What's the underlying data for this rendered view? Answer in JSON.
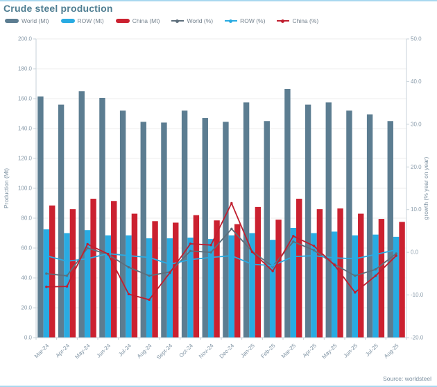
{
  "header": {
    "title": "Crude steel production"
  },
  "source": {
    "label": "Source: worldsteel"
  },
  "colors": {
    "title_text": "#4e7d91",
    "world_bar": "#5c7d91",
    "row_bar": "#29abe2",
    "china_bar": "#cb2130",
    "world_line": "#5d6e7b",
    "row_line": "#29abe2",
    "china_line": "#c01f2f",
    "grid": "#ececec",
    "axis": "#c7d2d9"
  },
  "chart_data": {
    "type": "combo-bar-line",
    "title": "Crude steel production",
    "categories": [
      "Mar-24",
      "Apr-24",
      "May-24",
      "Jun-24",
      "Jul-24",
      "Aug-24",
      "Sept-24",
      "Oct-24",
      "Nov-24",
      "Dec-24",
      "Jan-25",
      "Feb-25",
      "Mar-25",
      "Apr-25",
      "May-25",
      "Jun-25",
      "Jul-25",
      "Aug-25"
    ],
    "series": [
      {
        "name": "World (Mt)",
        "type": "bar",
        "axis": "left",
        "color": "#5c7d91",
        "values": [
          161.5,
          156.0,
          165.0,
          160.5,
          152.0,
          144.5,
          144.0,
          152.0,
          147.0,
          144.5,
          157.5,
          145.0,
          166.5,
          156.0,
          157.5,
          152.0,
          149.5,
          145.0
        ]
      },
      {
        "name": "ROW (Mt)",
        "type": "bar",
        "axis": "left",
        "color": "#29abe2",
        "values": [
          72.5,
          70.0,
          72.0,
          68.5,
          68.5,
          66.5,
          66.5,
          67.0,
          66.0,
          68.5,
          70.0,
          65.5,
          73.5,
          70.0,
          71.0,
          68.5,
          69.0,
          67.5
        ]
      },
      {
        "name": "China (Mt)",
        "type": "bar",
        "axis": "left",
        "color": "#cb2130",
        "values": [
          88.5,
          86.0,
          93.0,
          91.5,
          83.0,
          78.0,
          77.0,
          82.0,
          78.5,
          76.0,
          87.5,
          79.0,
          93.0,
          86.0,
          86.5,
          83.0,
          79.5,
          77.5
        ]
      },
      {
        "name": "World (%)",
        "type": "line",
        "axis": "right",
        "color": "#5d6e7b",
        "values": [
          -5.0,
          -5.5,
          1.0,
          -0.5,
          -3.5,
          -5.5,
          -4.6,
          0.3,
          0.0,
          5.5,
          0.2,
          -3.3,
          2.5,
          0.5,
          -2.8,
          -5.5,
          -4.0,
          -0.3
        ]
      },
      {
        "name": "ROW (%)",
        "type": "line",
        "axis": "right",
        "color": "#29abe2",
        "values": [
          -0.8,
          -2.1,
          -1.5,
          -0.3,
          -0.8,
          -1.2,
          -2.8,
          -1.7,
          -1.2,
          -0.8,
          -2.8,
          -3.1,
          -1.0,
          -0.8,
          -1.3,
          -1.5,
          -0.5,
          0.6
        ]
      },
      {
        "name": "China (%)",
        "type": "line",
        "axis": "right",
        "color": "#c01f2f",
        "values": [
          -8.1,
          -8.0,
          1.9,
          -0.4,
          -9.8,
          -11.1,
          -4.8,
          2.0,
          1.7,
          11.5,
          0.1,
          -4.4,
          3.8,
          1.5,
          -3.0,
          -9.4,
          -5.5,
          -0.8
        ]
      }
    ],
    "left_axis": {
      "label": "Production (Mt)",
      "min": 0,
      "max": 200,
      "step": 20,
      "ticks": [
        "200.0",
        "180.0",
        "160.0",
        "140.0",
        "120.0",
        "100.0",
        "80.0",
        "60.0",
        "40.0",
        "20.0",
        "0.0"
      ]
    },
    "right_axis": {
      "label": "growth (% year on year)",
      "min": -20,
      "max": 50,
      "step": 10,
      "ticks": [
        "50.0",
        "40.0",
        "30.0",
        "20.0",
        "10.0",
        "0.0",
        "-10.0",
        "-20.0"
      ]
    },
    "grid": true,
    "legend_position": "top"
  }
}
